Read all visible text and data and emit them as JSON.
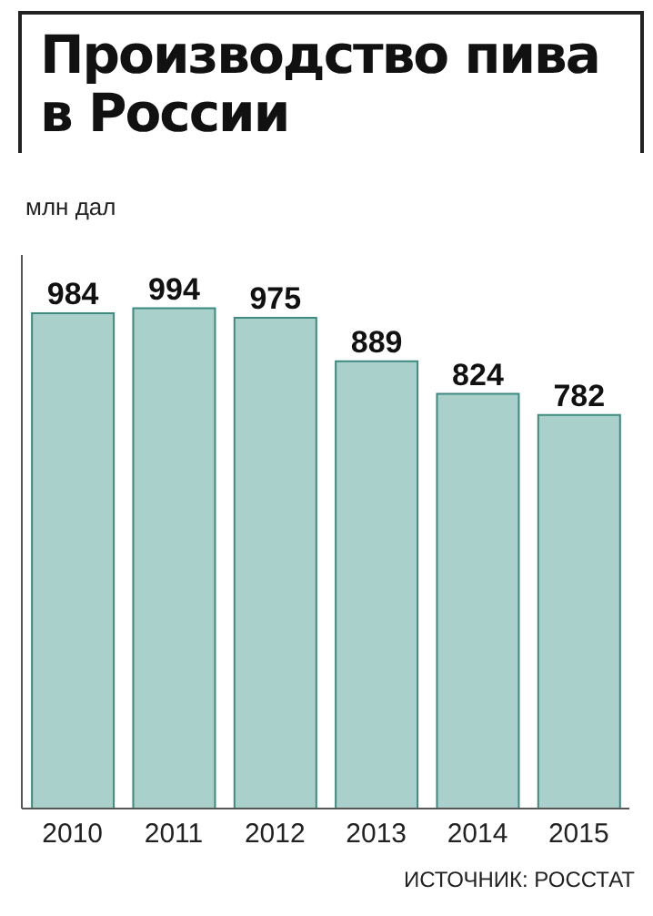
{
  "chart_data": {
    "type": "bar",
    "title": "Производство пива в России",
    "ylabel": "млн дал",
    "categories": [
      "2010",
      "2011",
      "2012",
      "2013",
      "2014",
      "2015"
    ],
    "values": [
      984,
      994,
      975,
      889,
      824,
      782
    ],
    "color": "#a9d0ca",
    "ylim": [
      0,
      1100
    ],
    "data_labels": true,
    "tick_labels": "x",
    "annotations": [
      "ИСТОЧНИК: РОССТАТ"
    ]
  }
}
